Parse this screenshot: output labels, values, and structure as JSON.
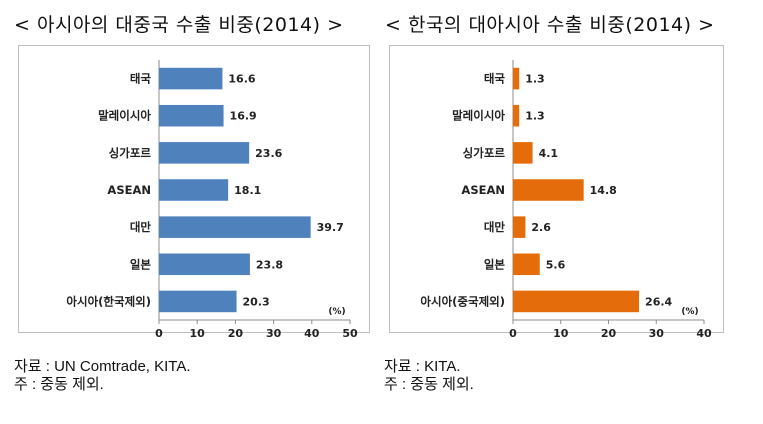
{
  "left": {
    "title": "< 아시아의 대중국 수출 비중(2014) >",
    "source_line1": "자료 : UN Comtrade, KITA.",
    "source_line2": "  주 : 중동 제외."
  },
  "right": {
    "title": "< 한국의 대아시아 수출 비중(2014) >",
    "source_line1": "자료 : KITA.",
    "source_line2": "  주 : 중동 제외."
  },
  "chart_data": [
    {
      "type": "bar",
      "orientation": "horizontal",
      "title": "< 아시아의 대중국 수출 비중(2014) >",
      "categories": [
        "태국",
        "말레이시아",
        "싱가포르",
        "ASEAN",
        "대만",
        "일본",
        "아시아(한국제외)"
      ],
      "values": [
        16.6,
        16.9,
        23.6,
        18.1,
        39.7,
        23.8,
        20.3
      ],
      "value_labels": [
        "16.6",
        "16.9",
        "23.6",
        "18.1",
        "39.7",
        "23.8",
        "20.3"
      ],
      "unit": "(%)",
      "xlim": [
        0,
        50
      ],
      "ticks": [
        "0",
        "10",
        "20",
        "30",
        "40",
        "50"
      ],
      "color": "#4f81bd",
      "grid": false
    },
    {
      "type": "bar",
      "orientation": "horizontal",
      "title": "< 한국의 대아시아 수출 비중(2014) >",
      "categories": [
        "태국",
        "말레이시아",
        "싱가포르",
        "ASEAN",
        "대만",
        "일본",
        "아시아(중국제외)"
      ],
      "values": [
        1.3,
        1.3,
        4.1,
        14.8,
        2.6,
        5.6,
        26.4
      ],
      "value_labels": [
        "1.3",
        "1.3",
        "4.1",
        "14.8",
        "2.6",
        "5.6",
        "26.4"
      ],
      "unit": "(%)",
      "xlim": [
        0,
        40
      ],
      "ticks": [
        "0",
        "10",
        "20",
        "30",
        "40"
      ],
      "color": "#e46c0a",
      "grid": false
    }
  ]
}
